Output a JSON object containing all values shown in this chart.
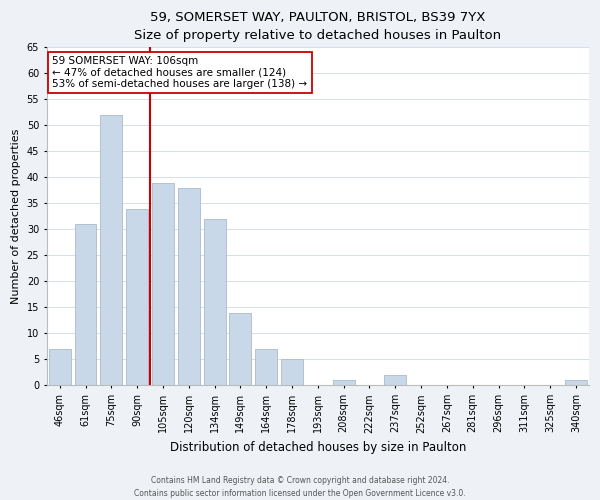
{
  "title1": "59, SOMERSET WAY, PAULTON, BRISTOL, BS39 7YX",
  "title2": "Size of property relative to detached houses in Paulton",
  "xlabel": "Distribution of detached houses by size in Paulton",
  "ylabel": "Number of detached properties",
  "bar_labels": [
    "46sqm",
    "61sqm",
    "75sqm",
    "90sqm",
    "105sqm",
    "120sqm",
    "134sqm",
    "149sqm",
    "164sqm",
    "178sqm",
    "193sqm",
    "208sqm",
    "222sqm",
    "237sqm",
    "252sqm",
    "267sqm",
    "281sqm",
    "296sqm",
    "311sqm",
    "325sqm",
    "340sqm"
  ],
  "bar_values": [
    7,
    31,
    52,
    34,
    39,
    38,
    32,
    14,
    7,
    5,
    0,
    1,
    0,
    2,
    0,
    0,
    0,
    0,
    0,
    0,
    1
  ],
  "bar_color": "#c8d8e8",
  "bar_edge_color": "#aabccc",
  "vline_x_idx": 4,
  "vline_color": "#cc0000",
  "annotation_title": "59 SOMERSET WAY: 106sqm",
  "annotation_line1": "← 47% of detached houses are smaller (124)",
  "annotation_line2": "53% of semi-detached houses are larger (138) →",
  "annotation_box_color": "#ffffff",
  "annotation_box_edge": "#cc0000",
  "ylim": [
    0,
    65
  ],
  "yticks": [
    0,
    5,
    10,
    15,
    20,
    25,
    30,
    35,
    40,
    45,
    50,
    55,
    60,
    65
  ],
  "footer1": "Contains HM Land Registry data © Crown copyright and database right 2024.",
  "footer2": "Contains public sector information licensed under the Open Government Licence v3.0.",
  "bg_color": "#eef2f6",
  "plot_bg_color": "#ffffff",
  "title1_fontsize": 9.5,
  "title2_fontsize": 8.5,
  "ylabel_fontsize": 8.0,
  "xlabel_fontsize": 8.5,
  "tick_fontsize": 7.0,
  "annotation_fontsize": 7.5,
  "footer_fontsize": 5.5
}
